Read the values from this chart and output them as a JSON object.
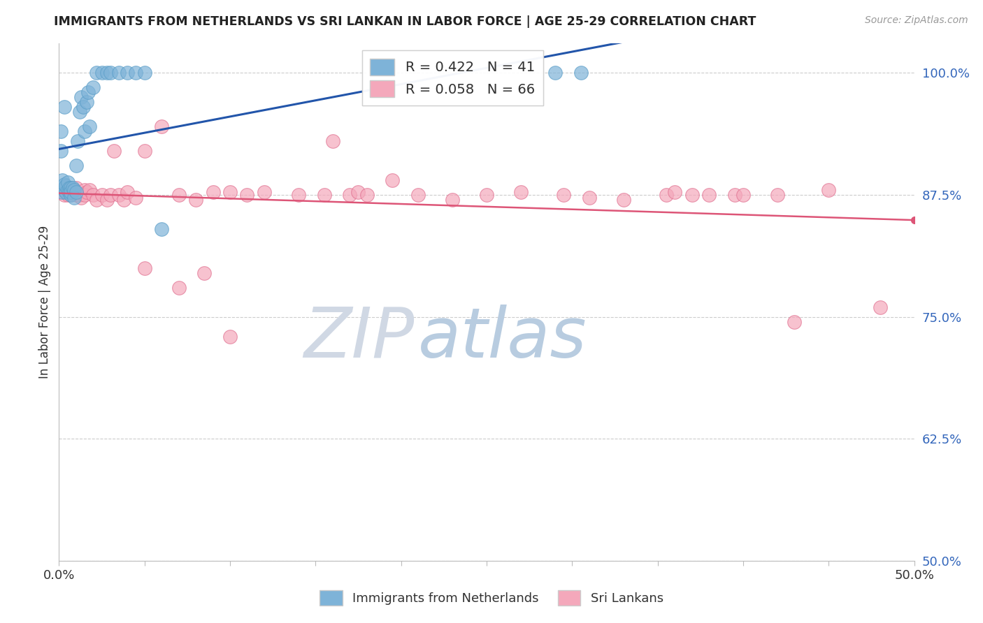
{
  "title": "IMMIGRANTS FROM NETHERLANDS VS SRI LANKAN IN LABOR FORCE | AGE 25-29 CORRELATION CHART",
  "source": "Source: ZipAtlas.com",
  "ylabel": "In Labor Force | Age 25-29",
  "xlim": [
    0.0,
    0.5
  ],
  "ylim": [
    0.5,
    1.03
  ],
  "ytick_values": [
    0.5,
    0.625,
    0.75,
    0.875,
    1.0
  ],
  "ytick_labels": [
    "50.0%",
    "62.5%",
    "75.0%",
    "87.5%",
    "100.0%"
  ],
  "xtick_values": [
    0.0,
    0.05,
    0.1,
    0.15,
    0.2,
    0.25,
    0.3,
    0.35,
    0.4,
    0.45,
    0.5
  ],
  "netherlands_color": "#7EB3D8",
  "netherlands_edge": "#5A9EC8",
  "srilanka_color": "#F4A8BB",
  "srilanka_edge": "#E07090",
  "nl_line_color": "#2255AA",
  "sl_line_color": "#DD5577",
  "netherlands_R": 0.422,
  "netherlands_N": 41,
  "srilanka_R": 0.058,
  "srilanka_N": 66,
  "legend_labels": [
    "Immigrants from Netherlands",
    "Sri Lankans"
  ],
  "watermark_zip": "ZIP",
  "watermark_atlas": "atlas",
  "nl_x": [
    0.001,
    0.001,
    0.002,
    0.002,
    0.003,
    0.003,
    0.003,
    0.004,
    0.004,
    0.005,
    0.005,
    0.006,
    0.006,
    0.007,
    0.007,
    0.007,
    0.008,
    0.009,
    0.009,
    0.01,
    0.01,
    0.011,
    0.012,
    0.013,
    0.014,
    0.015,
    0.016,
    0.017,
    0.018,
    0.02,
    0.022,
    0.025,
    0.028,
    0.03,
    0.035,
    0.04,
    0.045,
    0.05,
    0.06,
    0.29,
    0.305
  ],
  "nl_y": [
    0.92,
    0.94,
    0.878,
    0.89,
    0.88,
    0.886,
    0.965,
    0.878,
    0.884,
    0.88,
    0.888,
    0.882,
    0.878,
    0.882,
    0.875,
    0.878,
    0.882,
    0.88,
    0.872,
    0.878,
    0.905,
    0.93,
    0.96,
    0.975,
    0.965,
    0.94,
    0.97,
    0.98,
    0.945,
    0.985,
    1.0,
    1.0,
    1.0,
    1.0,
    1.0,
    1.0,
    1.0,
    1.0,
    0.84,
    1.0,
    1.0
  ],
  "sl_x": [
    0.001,
    0.002,
    0.003,
    0.003,
    0.004,
    0.005,
    0.005,
    0.006,
    0.006,
    0.007,
    0.008,
    0.009,
    0.01,
    0.01,
    0.012,
    0.013,
    0.015,
    0.015,
    0.016,
    0.018,
    0.02,
    0.022,
    0.025,
    0.028,
    0.03,
    0.032,
    0.035,
    0.038,
    0.04,
    0.045,
    0.05,
    0.06,
    0.07,
    0.08,
    0.09,
    0.1,
    0.11,
    0.12,
    0.14,
    0.155,
    0.16,
    0.17,
    0.175,
    0.18,
    0.195,
    0.21,
    0.23,
    0.25,
    0.27,
    0.295,
    0.31,
    0.33,
    0.355,
    0.36,
    0.37,
    0.38,
    0.395,
    0.4,
    0.42,
    0.45,
    0.05,
    0.07,
    0.085,
    0.1,
    0.43,
    0.48
  ],
  "sl_y": [
    0.878,
    0.88,
    0.875,
    0.882,
    0.878,
    0.875,
    0.882,
    0.878,
    0.882,
    0.875,
    0.878,
    0.878,
    0.875,
    0.882,
    0.875,
    0.872,
    0.88,
    0.875,
    0.878,
    0.88,
    0.875,
    0.87,
    0.875,
    0.87,
    0.875,
    0.92,
    0.875,
    0.87,
    0.878,
    0.872,
    0.92,
    0.945,
    0.875,
    0.87,
    0.878,
    0.878,
    0.875,
    0.878,
    0.875,
    0.875,
    0.93,
    0.875,
    0.878,
    0.875,
    0.89,
    0.875,
    0.87,
    0.875,
    0.878,
    0.875,
    0.872,
    0.87,
    0.875,
    0.878,
    0.875,
    0.875,
    0.875,
    0.875,
    0.875,
    0.88,
    0.8,
    0.78,
    0.795,
    0.73,
    0.745,
    0.76
  ]
}
